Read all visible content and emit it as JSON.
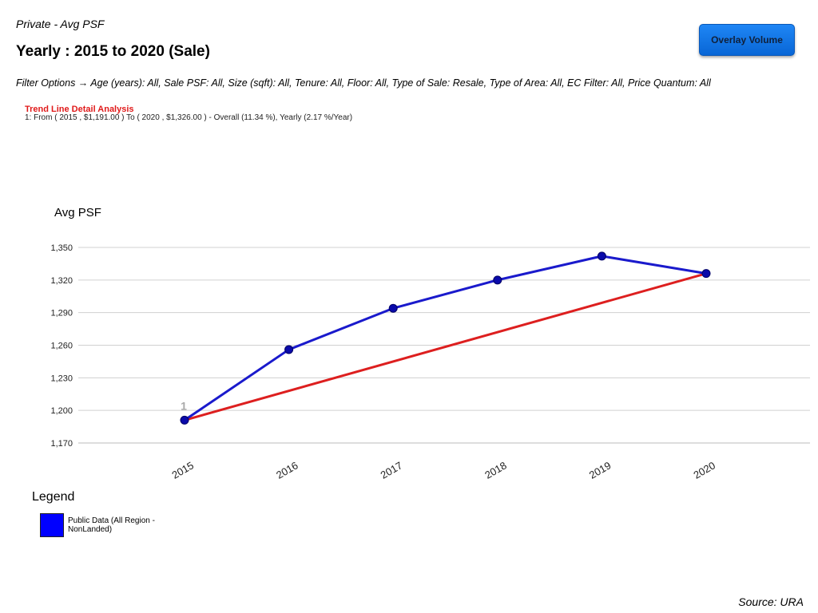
{
  "header": {
    "subtitle": "Private - Avg PSF",
    "title": "Yearly : 2015 to 2020 (Sale)",
    "overlay_button": "Overlay Volume",
    "filters": "Filter Options → Age (years): All, Sale PSF: All, Size (sqft): All, Tenure: All, Floor: All, Type of Sale: Resale, Type of Area: All, EC Filter: All, Price Quantum: All"
  },
  "trend": {
    "title": "Trend Line Detail Analysis",
    "detail": "1: From ( 2015 , $1,191.00 ) To ( 2020 , $1,326.00 ) - Overall (11.34 %), Yearly (2.17 %/Year)"
  },
  "legend": {
    "title": "Legend",
    "item": "Public Data (All Region - NonLanded)"
  },
  "footer": {
    "source": "Source: URA"
  },
  "colors": {
    "series": "#1a1acc",
    "point": "#0a0aaa",
    "trend": "#dd1f1f",
    "grid": "#d0d0d0",
    "button": "#1677e8"
  },
  "chart_data": {
    "type": "line",
    "ylabel": "Avg PSF",
    "xlabel": "",
    "categories": [
      "2015",
      "2016",
      "2017",
      "2018",
      "2019",
      "2020"
    ],
    "y_ticks": [
      1170,
      1200,
      1230,
      1260,
      1290,
      1320,
      1350
    ],
    "y_tick_labels": [
      "1,170",
      "1,200",
      "1,230",
      "1,260",
      "1,290",
      "1,320",
      "1,350"
    ],
    "ylim": [
      1170,
      1350
    ],
    "grid": true,
    "series": [
      {
        "name": "Public Data (All Region - NonLanded)",
        "values": [
          1191,
          1256,
          1294,
          1320,
          1342,
          1326
        ]
      }
    ],
    "trend_line": {
      "from": [
        "2015",
        1191
      ],
      "to": [
        "2020",
        1326
      ],
      "label": "1"
    }
  }
}
